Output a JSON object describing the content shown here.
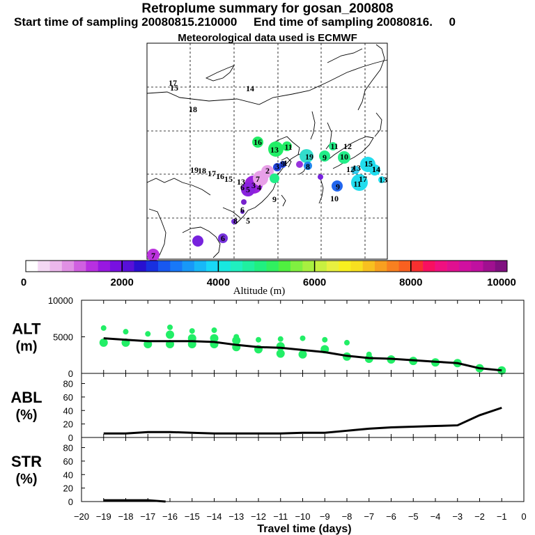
{
  "header": {
    "title": "Retroplume summary for gosan_200808",
    "subtitle": "Start time of sampling 20080815.210000     End time of sampling 20080816.     0",
    "met": "Meteorological data used is ECMWF"
  },
  "colorbar": {
    "tick_labels": [
      "0",
      "2000",
      "4000",
      "6000",
      "8000",
      "10000"
    ],
    "tick_values": [
      0,
      2000,
      4000,
      6000,
      8000,
      10000
    ],
    "label": "Altitude  (m)",
    "colors": [
      "#ffffff",
      "#f4d8f4",
      "#ecb8ec",
      "#e090e4",
      "#d060e0",
      "#b830e0",
      "#9818e0",
      "#7810e0",
      "#5810d8",
      "#2810d0",
      "#1830e0",
      "#1858f0",
      "#1878f8",
      "#1898f8",
      "#18b8f8",
      "#18d8f8",
      "#18e8e0",
      "#20f0c0",
      "#20f0a0",
      "#20f080",
      "#30f060",
      "#50f040",
      "#80f040",
      "#a8f040",
      "#c8f040",
      "#e8f040",
      "#f8f020",
      "#f8e020",
      "#f8c020",
      "#f8a020",
      "#f88020",
      "#f86020",
      "#f83030",
      "#f81060",
      "#f01080",
      "#e01090",
      "#d010a0",
      "#c010a0",
      "#a01090",
      "#801080"
    ]
  },
  "map_labels": [
    {
      "t": "17",
      "c": "#ccee33"
    },
    {
      "t": "15",
      "c": "#ccee33"
    },
    {
      "t": "14",
      "c": "#ccee33"
    },
    {
      "t": "18",
      "c": "#ccee33"
    },
    {
      "t": "16",
      "c": "#22ee66"
    },
    {
      "t": "13",
      "c": "#22ee66"
    },
    {
      "t": "11",
      "c": "#22ee66"
    },
    {
      "t": "19",
      "c": "#33ddaa"
    },
    {
      "t": "12",
      "c": "#22ee88"
    },
    {
      "t": "15",
      "c": "#22ee88"
    },
    {
      "t": "14",
      "c": "#22ee88"
    },
    {
      "t": "10",
      "c": "#22ee88"
    },
    {
      "t": "11",
      "c": "#22ee88"
    },
    {
      "t": "9",
      "c": "#22ee88"
    },
    {
      "t": "19",
      "c": "#22ee66"
    },
    {
      "t": "18",
      "c": "#22ee66"
    },
    {
      "t": "17",
      "c": "#22ee66"
    },
    {
      "t": "16",
      "c": "#22ee66"
    },
    {
      "t": "15",
      "c": "#22ee66"
    },
    {
      "t": "13",
      "c": "#22ee66"
    },
    {
      "t": "12",
      "c": "#33ccee"
    },
    {
      "t": "13",
      "c": "#33ccee"
    },
    {
      "t": "11",
      "c": "#22ddee"
    },
    {
      "t": "17",
      "c": "#22ddee"
    },
    {
      "t": "15",
      "c": "#22ddee"
    },
    {
      "t": "14",
      "c": "#22ddee"
    },
    {
      "t": "13",
      "c": "#22ddee"
    },
    {
      "t": "8",
      "c": "#2288ee"
    },
    {
      "t": "9",
      "c": "#2266ee"
    },
    {
      "t": "10",
      "c": "#2288ee"
    },
    {
      "t": "2",
      "c": "#e8a0e8"
    },
    {
      "t": "1",
      "c": "#e8a0e8"
    },
    {
      "t": "3",
      "c": "#9922dd"
    },
    {
      "t": "4",
      "c": "#9922dd"
    },
    {
      "t": "5",
      "c": "#8822dd"
    },
    {
      "t": "6",
      "c": "#8822dd"
    },
    {
      "t": "3",
      "c": "#2244dd"
    },
    {
      "t": "7",
      "c": "#9922dd"
    },
    {
      "t": "9",
      "c": "#7722dd"
    },
    {
      "t": "6",
      "c": "#6622dd"
    },
    {
      "t": "8",
      "c": "#7722cc"
    },
    {
      "t": "5",
      "c": "#6622cc"
    },
    {
      "t": "6",
      "c": "#7733dd"
    },
    {
      "t": "7",
      "c": "#bb33dd"
    },
    {
      "t": "9",
      "c": "#8822dd"
    }
  ],
  "chart_data": [
    {
      "type": "line",
      "name": "ALT",
      "ylabel": "ALT\n(m)",
      "y_label_line1": "ALT",
      "y_label_line2": "(m)",
      "ylim": [
        0,
        10000
      ],
      "y_ticks": [
        0,
        5000,
        10000
      ],
      "y_tick_labels": [
        "0",
        "5000",
        "10000"
      ],
      "x": [
        -19,
        -18,
        -17,
        -16,
        -15,
        -14,
        -13,
        -12,
        -11,
        -10,
        -9,
        -8,
        -7,
        -6,
        -5,
        -4,
        -3,
        -2,
        -1
      ],
      "values": [
        4800,
        4600,
        4400,
        4400,
        4400,
        4300,
        3900,
        3600,
        3500,
        3200,
        2900,
        2400,
        2100,
        2000,
        1800,
        1600,
        1400,
        700,
        400
      ],
      "plume_points": [
        {
          "x": -19,
          "ys": [
            6200,
            4200
          ]
        },
        {
          "x": -18,
          "ys": [
            5700,
            4200
          ]
        },
        {
          "x": -17,
          "ys": [
            5400,
            4000
          ]
        },
        {
          "x": -16,
          "ys": [
            6300,
            5300,
            4000
          ]
        },
        {
          "x": -15,
          "ys": [
            5800,
            4800,
            4000
          ]
        },
        {
          "x": -14,
          "ys": [
            5900,
            4800,
            4000
          ]
        },
        {
          "x": -13,
          "ys": [
            5000,
            4500,
            3600
          ]
        },
        {
          "x": -12,
          "ys": [
            4600,
            3300
          ]
        },
        {
          "x": -11,
          "ys": [
            4700,
            3700,
            2700
          ]
        },
        {
          "x": -10,
          "ys": [
            4800,
            2600
          ]
        },
        {
          "x": -9,
          "ys": [
            4600,
            3300
          ]
        },
        {
          "x": -8,
          "ys": [
            4200,
            2300
          ]
        },
        {
          "x": -7,
          "ys": [
            2600,
            2000
          ]
        },
        {
          "x": -6,
          "ys": [
            1900
          ]
        },
        {
          "x": -5,
          "ys": [
            1700
          ]
        },
        {
          "x": -4,
          "ys": [
            1500
          ]
        },
        {
          "x": -3,
          "ys": [
            1400
          ]
        },
        {
          "x": -2,
          "ys": [
            700
          ]
        },
        {
          "x": -1,
          "ys": [
            400
          ]
        }
      ]
    },
    {
      "type": "line",
      "name": "ABL",
      "y_label_line1": "ABL",
      "y_label_line2": "(%)",
      "ylim": [
        0,
        95
      ],
      "y_ticks": [
        0,
        20,
        40,
        60,
        80
      ],
      "y_tick_labels": [
        "0",
        "20",
        "40",
        "60",
        "80"
      ],
      "x": [
        -19,
        -18,
        -17,
        -16,
        -15,
        -14,
        -13,
        -12,
        -11,
        -10,
        -9,
        -8,
        -7,
        -6,
        -5,
        -4,
        -3,
        -2,
        -1
      ],
      "values": [
        6,
        6,
        8,
        8,
        7,
        6,
        6,
        6,
        6,
        7,
        7,
        10,
        13,
        15,
        16,
        17,
        18,
        33,
        44
      ]
    },
    {
      "type": "line",
      "name": "STR",
      "y_label_line1": "STR",
      "y_label_line2": "(%)",
      "ylim": [
        0,
        95
      ],
      "y_ticks": [
        0,
        20,
        40,
        60,
        80
      ],
      "y_tick_labels": [
        "0",
        "20",
        "40",
        "60",
        "80"
      ],
      "x": [
        -19,
        -18,
        -17,
        -16.2
      ],
      "values": [
        2,
        2,
        2,
        0
      ]
    }
  ],
  "xaxis": {
    "ticks": [
      -20,
      -19,
      -18,
      -17,
      -16,
      -15,
      -14,
      -13,
      -12,
      -11,
      -10,
      -9,
      -8,
      -7,
      -6,
      -5,
      -4,
      -3,
      -2,
      -1,
      0
    ],
    "tick_labels": [
      "−20",
      "−19",
      "−18",
      "−17",
      "−16",
      "−15",
      "−14",
      "−13",
      "−12",
      "−11",
      "−10",
      "−9",
      "−8",
      "−7",
      "−6",
      "−5",
      "−4",
      "−3",
      "−2",
      "−1",
      "0"
    ],
    "label": "Travel time (days)",
    "range": [
      -20,
      0
    ]
  }
}
